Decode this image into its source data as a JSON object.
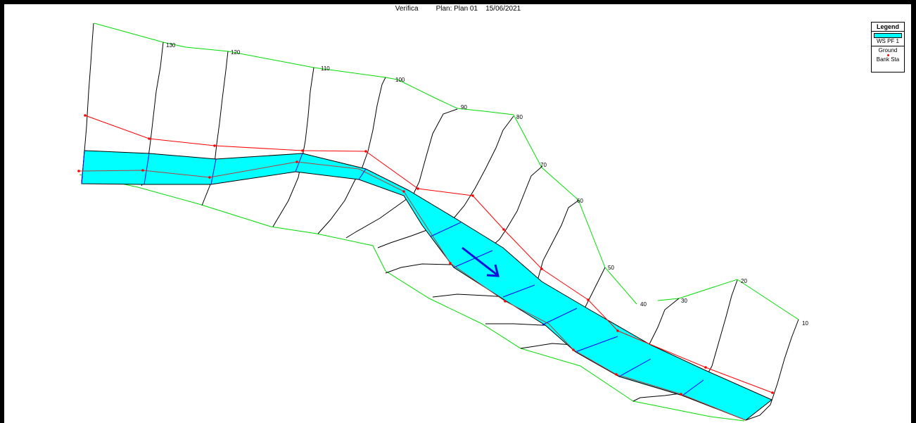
{
  "header": {
    "title": "Verifica",
    "plan": "Plan: Plan 01",
    "date": "15/06/2021"
  },
  "legend": {
    "title": "Legend",
    "items": [
      {
        "label": "WS PF 1",
        "symbol": "cyan-fill"
      },
      {
        "label": "Ground",
        "symbol": "black-line"
      },
      {
        "label": "Bank Sta",
        "symbol": "red-dot"
      }
    ]
  },
  "cross_sections": [
    "130",
    "120",
    "110",
    "100",
    "90",
    "80",
    "70",
    "60",
    "50",
    "40",
    "30",
    "20",
    "10"
  ],
  "flow_direction_icon": "blue-arrow",
  "colors": {
    "water_surface": "#00ffff",
    "ground": "#000000",
    "bank_station": "#ff0000",
    "reach_boundary": "#00dd00",
    "flow_arrow": "#1010dd",
    "xs_water_line": "#0000ff"
  }
}
